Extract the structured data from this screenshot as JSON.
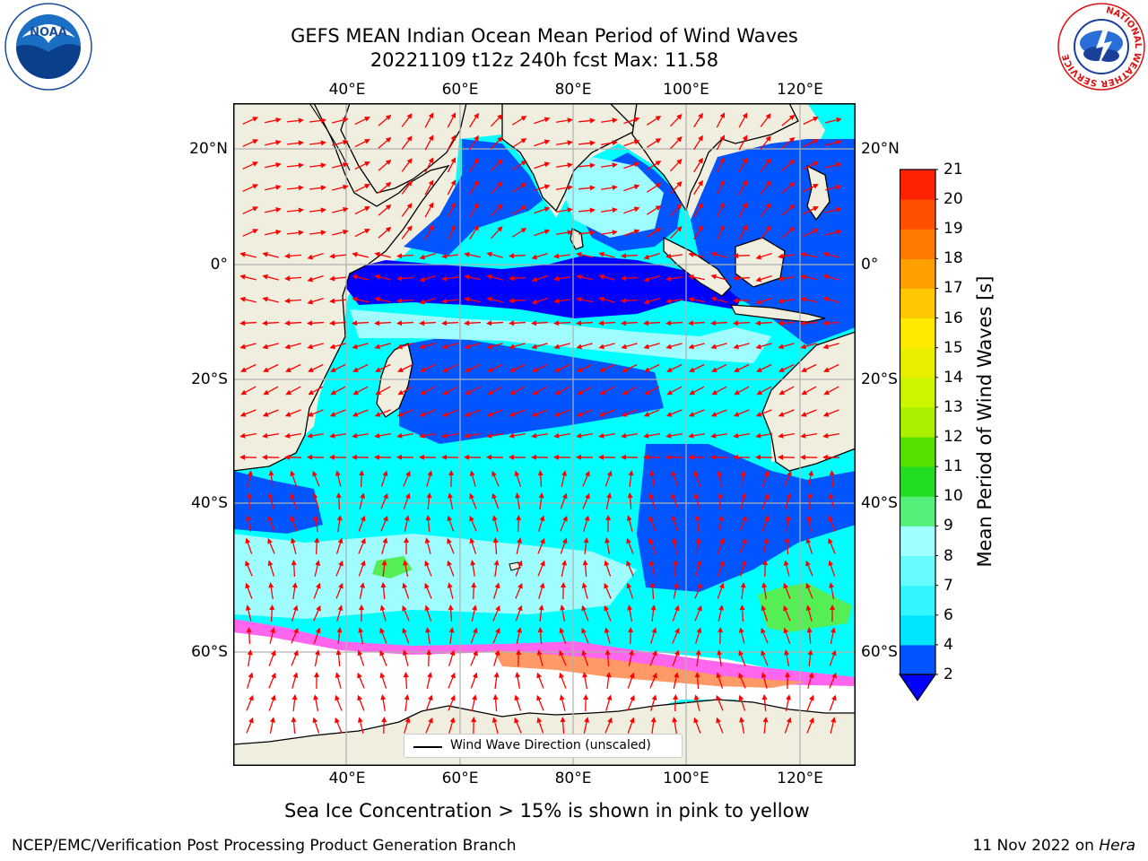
{
  "header": {
    "title_line1": "GEFS MEAN Indian Ocean Mean Period of Wind Waves",
    "title_line2": "20221109 t12z 240h fcst   Max: 11.58"
  },
  "axes": {
    "longitude_ticks": [
      "40°E",
      "60°E",
      "80°E",
      "100°E",
      "120°E"
    ],
    "latitude_ticks": [
      "20°N",
      "0°",
      "20°S",
      "40°S",
      "60°S"
    ]
  },
  "colorbar": {
    "title": "Mean Period of Wind Waves [s]",
    "levels": [
      "2",
      "4",
      "6",
      "7",
      "8",
      "9",
      "10",
      "11",
      "12",
      "13",
      "14",
      "15",
      "16",
      "17",
      "18",
      "19",
      "20",
      "21"
    ],
    "colors": [
      "#0055ff",
      "#00e5ff",
      "#33f5ff",
      "#66fbff",
      "#a0ffff",
      "#55f07a",
      "#22dd22",
      "#55e000",
      "#aaf000",
      "#ccf500",
      "#e8f000",
      "#ffea00",
      "#ffc800",
      "#ffa000",
      "#ff7800",
      "#ff5000",
      "#ff2200"
    ],
    "under_color": "#0000ff"
  },
  "legend": {
    "label": "Wind Wave Direction (unscaled)"
  },
  "caption": "Sea Ice Concentration > 15% is shown in pink to yellow",
  "footer": {
    "left": "NCEP/EMC/Verification Post Processing Product Generation Branch",
    "right_prefix": "11 Nov 2022 on ",
    "right_host": "Hera"
  },
  "logos": {
    "noaa": "NOAA",
    "nws_ring": "NATIONAL WEATHER SERVICE"
  },
  "map_colors": {
    "land": "#efeedf",
    "deep_blue": "#0000ff",
    "mid_blue": "#0055ff",
    "cyan": "#00ffff",
    "light_cyan": "#9ffcff",
    "green": "#55ee55",
    "ice_pink": "#ff66ee",
    "ice_orange": "#ff9966",
    "ice_white": "#ffffff",
    "arrow": "#ff0000",
    "grid": "#b0b0b0"
  }
}
